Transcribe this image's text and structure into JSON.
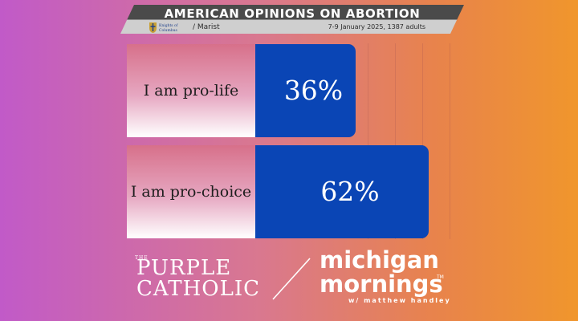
{
  "header": {
    "title": "AMERICAN OPINIONS ON ABORTION",
    "source": "/ Marist",
    "logo_text": [
      "Knights of",
      "Columbus"
    ],
    "meta": "7-9 January 2025, 1387 adults"
  },
  "chart_data": {
    "type": "bar",
    "orientation": "horizontal",
    "title": "AMERICAN OPINIONS ON ABORTION",
    "categories": [
      "I am pro-life",
      "I am pro-choice"
    ],
    "values": [
      36,
      62
    ],
    "value_labels": [
      "36%",
      "62%"
    ],
    "unit": "%",
    "bar_color": "#0a45b5",
    "grid": true
  },
  "brands": {
    "left": {
      "the": "THE",
      "line1": "PURPLE",
      "line2": "CATHOLIC"
    },
    "right": {
      "line1": "michigan",
      "line2": "mornings",
      "tm": "TM",
      "byline": "w/ matthew handley"
    }
  },
  "colors": {
    "accent": "#0a45b5",
    "header_dark": "#4a4a4a",
    "header_light": "#cfcfcf"
  }
}
